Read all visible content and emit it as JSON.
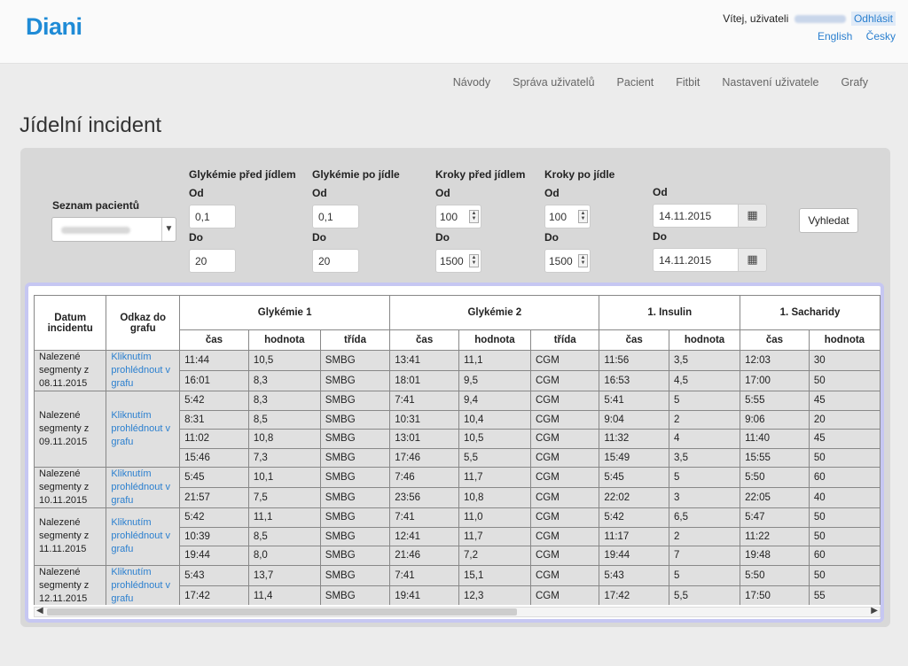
{
  "header": {
    "logo": "Diani",
    "welcome": "Vítej, uživateli",
    "logout": "Odhlásit",
    "languages": [
      "English",
      "Česky"
    ]
  },
  "nav": [
    "Návody",
    "Správa uživatelů",
    "Pacient",
    "Fitbit",
    "Nastavení uživatele",
    "Grafy"
  ],
  "page_title": "Jídelní incident",
  "filters": {
    "patient_list_label": "Seznam pacientů",
    "glyc_before": {
      "label": "Glykémie před jídlem",
      "from_label": "Od",
      "from": "0,1",
      "to_label": "Do",
      "to": "20"
    },
    "glyc_after": {
      "label": "Glykémie po jídle",
      "from_label": "Od",
      "from": "0,1",
      "to_label": "Do",
      "to": "20"
    },
    "steps_before": {
      "label": "Kroky před jídlem",
      "from_label": "Od",
      "from": "100",
      "to_label": "Do",
      "to": "1500"
    },
    "steps_after": {
      "label": "Kroky po jídle",
      "from_label": "Od",
      "from": "100",
      "to_label": "Do",
      "to": "1500"
    },
    "date": {
      "from_label": "Od",
      "from": "14.11.2015",
      "to_label": "Do",
      "to": "14.11.2015"
    },
    "search_button": "Vyhledat"
  },
  "table": {
    "headers": {
      "date": "Datum incidentu",
      "link": "Odkaz do grafu",
      "groups": [
        "Glykémie 1",
        "Glykémie 2",
        "1. Insulin",
        "1. Sacharidy"
      ],
      "sub": [
        "čas",
        "hodnota",
        "třída",
        "čas",
        "hodnota",
        "třída",
        "čas",
        "hodnota",
        "čas",
        "hodnota"
      ]
    },
    "link_text": "Kliknutím prohlédnout v grafu",
    "groups": [
      {
        "date": "Nalezené segmenty z 08.11.2015",
        "rows": [
          [
            "11:44",
            "10,5",
            "SMBG",
            "13:41",
            "11,1",
            "CGM",
            "11:56",
            "3,5",
            "12:03",
            "30"
          ],
          [
            "16:01",
            "8,3",
            "SMBG",
            "18:01",
            "9,5",
            "CGM",
            "16:53",
            "4,5",
            "17:00",
            "50"
          ]
        ]
      },
      {
        "date": "Nalezené segmenty z 09.11.2015",
        "rows": [
          [
            "5:42",
            "8,3",
            "SMBG",
            "7:41",
            "9,4",
            "CGM",
            "5:41",
            "5",
            "5:55",
            "45"
          ],
          [
            "8:31",
            "8,5",
            "SMBG",
            "10:31",
            "10,4",
            "CGM",
            "9:04",
            "2",
            "9:06",
            "20"
          ],
          [
            "11:02",
            "10,8",
            "SMBG",
            "13:01",
            "10,5",
            "CGM",
            "11:32",
            "4",
            "11:40",
            "45"
          ],
          [
            "15:46",
            "7,3",
            "SMBG",
            "17:46",
            "5,5",
            "CGM",
            "15:49",
            "3,5",
            "15:55",
            "50"
          ]
        ]
      },
      {
        "date": "Nalezené segmenty z 10.11.2015",
        "rows": [
          [
            "5:45",
            "10,1",
            "SMBG",
            "7:46",
            "11,7",
            "CGM",
            "5:45",
            "5",
            "5:50",
            "60"
          ],
          [
            "21:57",
            "7,5",
            "SMBG",
            "23:56",
            "10,8",
            "CGM",
            "22:02",
            "3",
            "22:05",
            "40"
          ]
        ]
      },
      {
        "date": "Nalezené segmenty z 11.11.2015",
        "rows": [
          [
            "5:42",
            "11,1",
            "SMBG",
            "7:41",
            "11,0",
            "CGM",
            "5:42",
            "6,5",
            "5:47",
            "50"
          ],
          [
            "10:39",
            "8,5",
            "SMBG",
            "12:41",
            "11,7",
            "CGM",
            "11:17",
            "2",
            "11:22",
            "50"
          ],
          [
            "19:44",
            "8,0",
            "SMBG",
            "21:46",
            "7,2",
            "CGM",
            "19:44",
            "7",
            "19:48",
            "60"
          ]
        ]
      },
      {
        "date": "Nalezené segmenty z 12.11.2015",
        "rows": [
          [
            "5:43",
            "13,7",
            "SMBG",
            "7:41",
            "15,1",
            "CGM",
            "5:43",
            "5",
            "5:50",
            "50"
          ],
          [
            "17:42",
            "11,4",
            "SMBG",
            "19:41",
            "12,3",
            "CGM",
            "17:42",
            "5,5",
            "17:50",
            "55"
          ]
        ]
      }
    ]
  }
}
